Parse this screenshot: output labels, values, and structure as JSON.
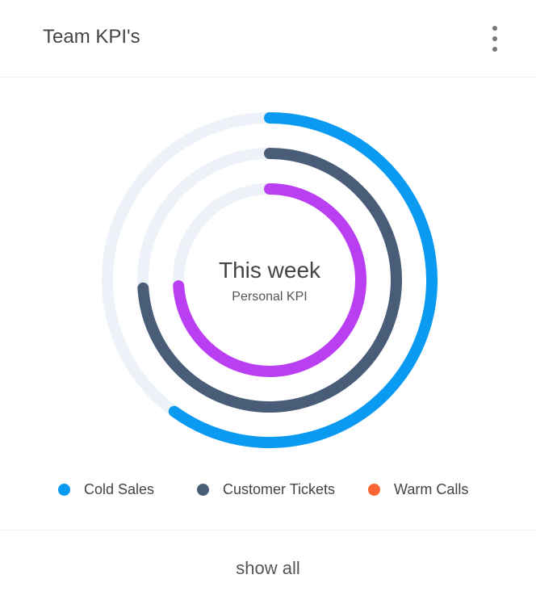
{
  "header": {
    "title": "Team KPI's",
    "menu_icon": "more-vertical-icon"
  },
  "chart_data": {
    "type": "radial-bar",
    "center_title": "This week",
    "center_subtitle": "Personal KPI",
    "max": 100,
    "series": [
      {
        "name": "Cold Sales",
        "value": 60,
        "color": "#0a9af2"
      },
      {
        "name": "Customer Tickets",
        "value": 74,
        "color": "#4a5d78"
      },
      {
        "name": "Warm Calls",
        "value": 74,
        "color": "#bb3ff2",
        "legend_color": "#fd6434"
      }
    ],
    "track_color": "#edf1f8",
    "legend_position": "bottom"
  },
  "footer": {
    "show_all": "show all"
  }
}
